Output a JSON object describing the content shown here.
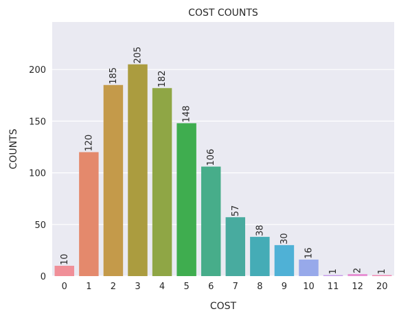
{
  "chart_data": {
    "type": "bar",
    "title": "COST COUNTS",
    "xlabel": "COST",
    "ylabel": "COUNTS",
    "categories": [
      "0",
      "1",
      "2",
      "3",
      "4",
      "5",
      "6",
      "7",
      "8",
      "9",
      "10",
      "11",
      "12",
      "20"
    ],
    "values": [
      10,
      120,
      185,
      205,
      182,
      148,
      106,
      57,
      38,
      30,
      16,
      1,
      2,
      1
    ],
    "data_labels": [
      "10",
      "120",
      "185",
      "205",
      "182",
      "148",
      "106",
      "57",
      "38",
      "30",
      "16",
      "1",
      "2",
      "1"
    ],
    "yticks": [
      0,
      50,
      100,
      150,
      200
    ],
    "ytick_labels": [
      "0",
      "50",
      "100",
      "150",
      "200"
    ],
    "ylim": [
      0,
      246
    ],
    "grid": "horizontal",
    "background_color": "#eaeaf2",
    "colors": [
      "#f08f98",
      "#e4896c",
      "#c49a4a",
      "#ab9c3f",
      "#8fa645",
      "#3fad4f",
      "#47ad8a",
      "#48ab9f",
      "#45acb6",
      "#4fb1d6",
      "#97a9ea",
      "#c79ee9",
      "#e791d4",
      "#f18bb4"
    ]
  }
}
